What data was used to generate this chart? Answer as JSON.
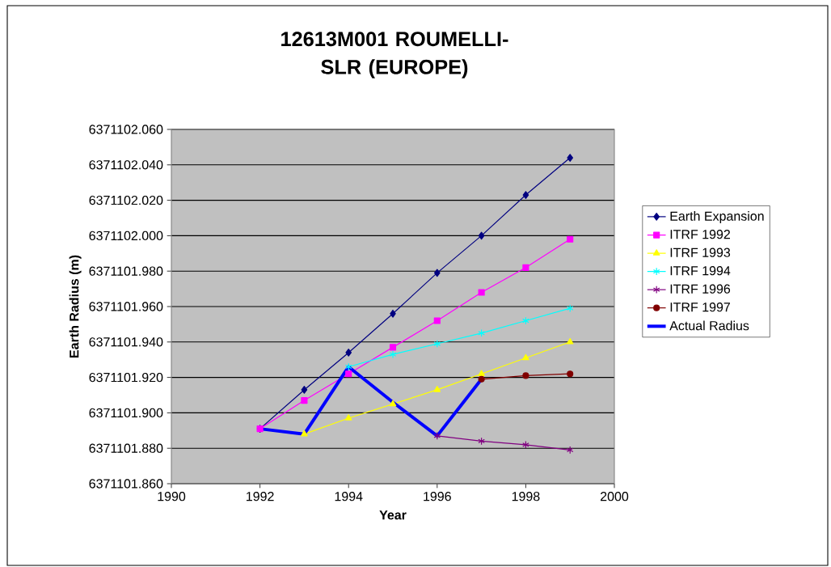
{
  "chart_data": {
    "type": "line",
    "title": "12613M001 ROUMELLI-SLR (EUROPE)",
    "xlabel": "Year",
    "ylabel": "Earth Radius (m)",
    "xlim": [
      1990,
      2000
    ],
    "xticks": [
      1990,
      1992,
      1994,
      1996,
      1998,
      2000
    ],
    "ylim": [
      6371101.86,
      6371102.06
    ],
    "yticks": [
      {
        "value": 6371101.86,
        "label": "6371101.860"
      },
      {
        "value": 6371101.88,
        "label": "6371101.880"
      },
      {
        "value": 6371101.9,
        "label": "6371101.900"
      },
      {
        "value": 6371101.92,
        "label": "6371101.920"
      },
      {
        "value": 6371101.94,
        "label": "6371101.940"
      },
      {
        "value": 6371101.96,
        "label": "6371101.960"
      },
      {
        "value": 6371101.98,
        "label": "6371101.980"
      },
      {
        "value": 6371102.0,
        "label": "6371102.000"
      },
      {
        "value": 6371102.02,
        "label": "6371102.020"
      },
      {
        "value": 6371102.04,
        "label": "6371102.040"
      },
      {
        "value": 6371102.06,
        "label": "6371102.060"
      }
    ],
    "grid": "y",
    "legend": "right",
    "series": [
      {
        "name": "Earth Expansion",
        "color": "#000080",
        "marker": "diamond",
        "x": [
          1992,
          1993,
          1994,
          1995,
          1996,
          1997,
          1998,
          1999
        ],
        "values": [
          6371101.891,
          6371101.913,
          6371101.934,
          6371101.956,
          6371101.979,
          6371102.0,
          6371102.023,
          6371102.044
        ]
      },
      {
        "name": "ITRF 1992",
        "color": "#ff00ff",
        "marker": "square",
        "x": [
          1992,
          1993,
          1994,
          1995,
          1996,
          1997,
          1998,
          1999
        ],
        "values": [
          6371101.891,
          6371101.907,
          6371101.922,
          6371101.937,
          6371101.952,
          6371101.968,
          6371101.982,
          6371101.998
        ]
      },
      {
        "name": "ITRF 1993",
        "color": "#ffff00",
        "marker": "triangle",
        "x": [
          1993,
          1994,
          1995,
          1996,
          1997,
          1998,
          1999
        ],
        "values": [
          6371101.888,
          6371101.897,
          6371101.905,
          6371101.913,
          6371101.922,
          6371101.931,
          6371101.94
        ]
      },
      {
        "name": "ITRF 1994",
        "color": "#00ffff",
        "marker": "cross",
        "x": [
          1994,
          1995,
          1996,
          1997,
          1998,
          1999
        ],
        "values": [
          6371101.926,
          6371101.933,
          6371101.939,
          6371101.945,
          6371101.952,
          6371101.959
        ]
      },
      {
        "name": "ITRF 1996",
        "color": "#800080",
        "marker": "cross",
        "x": [
          1996,
          1997,
          1998,
          1999
        ],
        "values": [
          6371101.887,
          6371101.884,
          6371101.882,
          6371101.879
        ]
      },
      {
        "name": "ITRF 1997",
        "color": "#800000",
        "marker": "circle",
        "x": [
          1997,
          1998,
          1999
        ],
        "values": [
          6371101.919,
          6371101.921,
          6371101.922
        ]
      },
      {
        "name": "Actual Radius",
        "color": "#0000ff",
        "marker": "none",
        "x": [
          1992,
          1993,
          1994,
          1995,
          1996,
          1997
        ],
        "values": [
          6371101.891,
          6371101.888,
          6371101.926,
          6371101.906,
          6371101.887,
          6371101.919
        ]
      }
    ]
  }
}
